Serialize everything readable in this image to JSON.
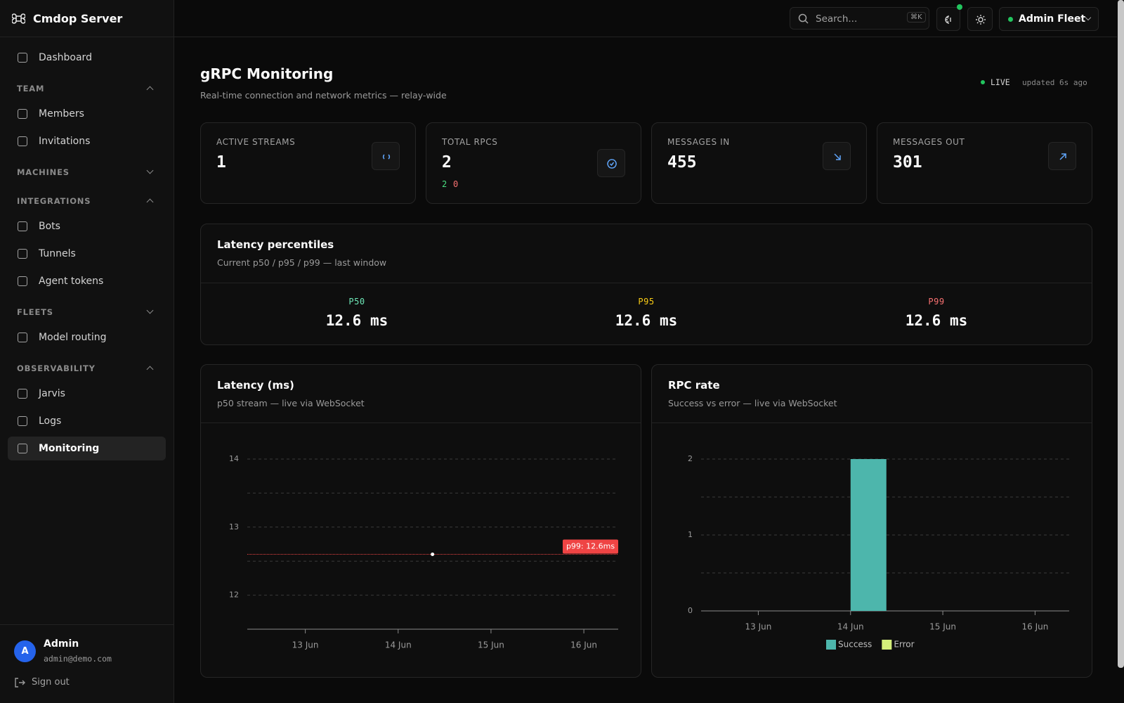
{
  "sidebar": {
    "brand": "Cmdop Server",
    "nav": [
      {
        "label": "Dashboard"
      }
    ],
    "sections": [
      {
        "title": "TEAM",
        "open": true,
        "items": [
          {
            "label": "Members"
          },
          {
            "label": "Invitations"
          }
        ]
      },
      {
        "title": "MACHINES",
        "open": false
      },
      {
        "title": "INTEGRATIONS",
        "open": true,
        "items": [
          {
            "label": "Bots"
          },
          {
            "label": "Tunnels"
          },
          {
            "label": "Agent tokens"
          }
        ]
      },
      {
        "title": "FLEETS",
        "open": false,
        "items": [
          {
            "label": "Model routing"
          }
        ]
      },
      {
        "title": "OBSERVABILITY",
        "open": true,
        "items": [
          {
            "label": "Jarvis"
          },
          {
            "label": "Logs"
          },
          {
            "label": "Monitoring",
            "active": true
          }
        ]
      }
    ],
    "user": {
      "initial": "A",
      "name": "Admin",
      "email": "admin@demo.com",
      "sign_out": "Sign out"
    }
  },
  "topbar": {
    "search": "Search...",
    "shortcut": "⌘K",
    "account": "Admin Fleet"
  },
  "header": {
    "title": "gRPC Monitoring",
    "subtitle": "Real-time connection and network metrics — relay-wide",
    "status": "LIVE",
    "updated": "updated 6s ago"
  },
  "stats": [
    {
      "label": "ACTIVE STREAMS",
      "value": 1
    },
    {
      "label": "TOTAL RPCS",
      "value": 2,
      "success": 2,
      "error": 0
    },
    {
      "label": "MESSAGES IN",
      "value": 455
    },
    {
      "label": "MESSAGES OUT",
      "value": 301
    }
  ],
  "percentiles": {
    "title": "Latency percentiles",
    "subtitle": "Current p50 / p95 / p99 — last window",
    "items": [
      {
        "label": "P50",
        "value": "12.6 ms"
      },
      {
        "label": "P95",
        "value": "12.6 ms"
      },
      {
        "label": "P99",
        "value": "12.6 ms"
      }
    ]
  },
  "chart_data": [
    {
      "type": "line",
      "title": "Latency (ms)",
      "subtitle": "p50 stream — live via WebSocket",
      "x": [
        14.37
      ],
      "values": [
        12.6
      ],
      "color": "#ffffff",
      "xlim": [
        12.375,
        16.37
      ],
      "xticks": [
        {
          "value": 13,
          "label": "13 Jun"
        },
        {
          "value": 14,
          "label": "14 Jun"
        },
        {
          "value": 15,
          "label": "15 Jun"
        },
        {
          "value": 16,
          "label": "16 Jun"
        }
      ],
      "ylim": [
        11.5,
        14
      ],
      "yticks": [
        12,
        13,
        14
      ],
      "minor_yticks": [
        12.5,
        13.5
      ],
      "grid": true,
      "reference_line": {
        "value": 12.6,
        "label": "p99: 12.6ms",
        "color": "#ef4444"
      }
    },
    {
      "type": "bar",
      "title": "RPC rate",
      "subtitle": "Success vs error — live via WebSocket",
      "x": [
        14
      ],
      "series": [
        {
          "name": "Success",
          "color": "#4db6ac",
          "values": [
            2
          ]
        },
        {
          "name": "Error",
          "color": "#d4ef7a",
          "values": [
            0
          ]
        }
      ],
      "xlim": [
        12.38,
        16.37
      ],
      "xticks": [
        {
          "value": 13,
          "label": "13 Jun"
        },
        {
          "value": 14,
          "label": "14 Jun"
        },
        {
          "value": 15,
          "label": "15 Jun"
        },
        {
          "value": 16,
          "label": "16 Jun"
        }
      ],
      "ylim": [
        0,
        2
      ],
      "yticks": [
        0,
        1,
        2
      ],
      "minor_yticks": [
        0.5,
        1.5
      ],
      "grid": true,
      "legend": "bottom"
    }
  ]
}
